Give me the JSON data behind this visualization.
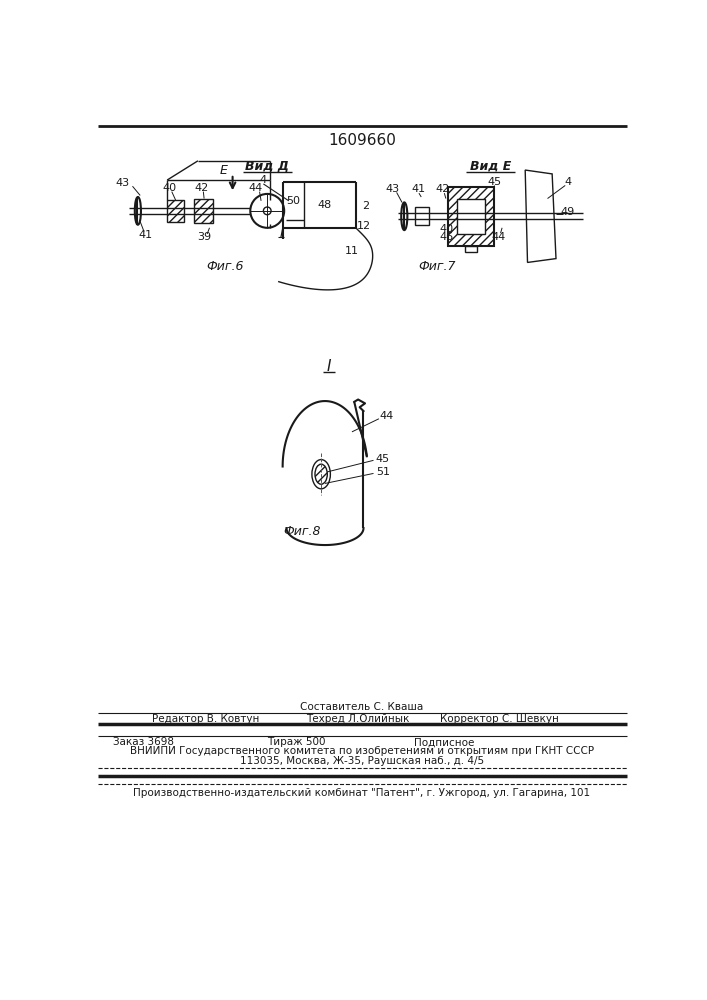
{
  "title": "1609660",
  "fig6_label": "Фиг.6",
  "fig7_label": "Фиг.7",
  "fig8_label": "Фиг.8",
  "vid_d_label": "Вид Д",
  "vid_e_label": "Вид Е",
  "sestavitel_line": "Составитель С. Кваша",
  "editor_line": "Редактор В. Ковтун",
  "techred_line": "Техред Л.Олийнык",
  "corrector_line": "Корректор С. Шевкун",
  "order_line": "Заказ 3698",
  "tirazh_line": "Тираж 500",
  "podpisnoe_line": "Подписное",
  "vniiipi_line": "ВНИИПИ Государственного комитета по изобретениям и открытиям при ГКНТ СССР",
  "address_line": "113035, Москва, Ж-35, Раушская наб., д. 4/5",
  "publisher_line": "Производственно-издательский комбинат \"Патент\", г. Ужгород, ул. Гагарина, 101",
  "bg_color": "#ffffff",
  "line_color": "#1a1a1a"
}
